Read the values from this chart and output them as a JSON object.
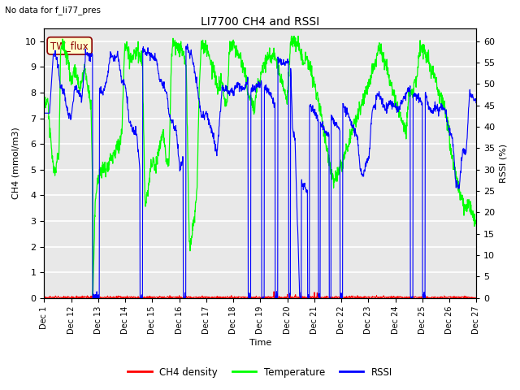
{
  "title": "LI7700 CH4 and RSSI",
  "suptitle": "No data for f_li77_pres",
  "xlabel": "Time",
  "ylabel_left": "CH4 (mmol/m3)",
  "ylabel_right": "RSSI (%)",
  "ylim_left": [
    0.0,
    10.5
  ],
  "ylim_right": [
    0,
    63
  ],
  "yticks_left": [
    0.0,
    1.0,
    2.0,
    3.0,
    4.0,
    5.0,
    6.0,
    7.0,
    8.0,
    9.0,
    10.0
  ],
  "yticks_right": [
    0,
    5,
    10,
    15,
    20,
    25,
    30,
    35,
    40,
    45,
    50,
    55,
    60
  ],
  "xtick_labels": [
    "Dec 1",
    "Dec 12",
    "Dec 13",
    "Dec 14",
    "Dec 15",
    "Dec 16",
    "Dec 17",
    "Dec 18",
    "Dec 19",
    "Dec 20",
    "Dec 21",
    "Dec 22",
    "Dec 23",
    "Dec 24",
    "Dec 25",
    "Dec 26",
    "Dec 27"
  ],
  "legend_labels": [
    "CH4 density",
    "Temperature",
    "RSSI"
  ],
  "box_label": "TW_flux",
  "box_color": "#8b0000",
  "box_bg": "#ffffcc",
  "bg_color": "#e8e8e8",
  "grid_color": "white",
  "figsize": [
    6.4,
    4.8
  ],
  "dpi": 100
}
